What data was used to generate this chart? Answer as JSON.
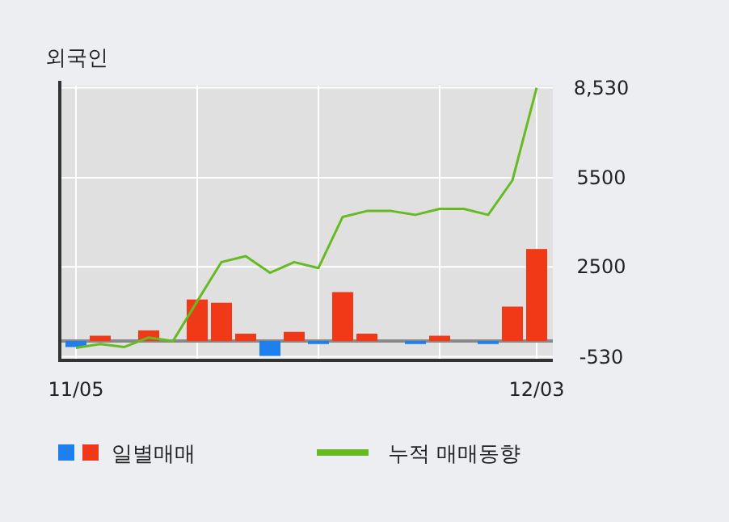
{
  "chart_data": {
    "type": "bar",
    "title": "외국인",
    "categories": [
      "11/05",
      null,
      null,
      null,
      null,
      null,
      null,
      null,
      null,
      null,
      null,
      null,
      null,
      null,
      null,
      null,
      null,
      null,
      null,
      "12/03"
    ],
    "series": [
      {
        "name": "일별매매",
        "colors": [
          "#1e7ff0",
          "#f03a17",
          "#f03a17",
          "#f03a17",
          "#f03a17",
          "#f03a17",
          "#f03a17",
          "#f03a17",
          "#1e7ff0",
          "#f03a17",
          "#1e7ff0",
          "#f03a17",
          "#f03a17",
          "#f03a17",
          "#1e7ff0",
          "#f03a17",
          "#f03a17",
          "#1e7ff0",
          "#f03a17",
          "#f03a17"
        ],
        "values": [
          -200,
          180,
          0,
          360,
          0,
          1400,
          1290,
          250,
          -500,
          310,
          -100,
          1650,
          250,
          0,
          -100,
          180,
          0,
          -100,
          1160,
          3100
        ]
      },
      {
        "name": "누적 매매동향",
        "type": "line",
        "color": "#66bb22",
        "values": [
          -230,
          -100,
          -200,
          120,
          0,
          1340,
          2660,
          2860,
          2300,
          2660,
          2460,
          4180,
          4380,
          4380,
          4250,
          4450,
          4450,
          4250,
          5410,
          8530
        ]
      }
    ],
    "ylim": [
      -650,
      8600
    ],
    "yticks": [
      {
        "value": 8530,
        "label": "8,530"
      },
      5500,
      2500,
      -530
    ],
    "ref_lines": [
      {
        "axis": "y",
        "value": 0,
        "color": "#888888"
      }
    ],
    "grid": true,
    "legend": "bottom"
  }
}
